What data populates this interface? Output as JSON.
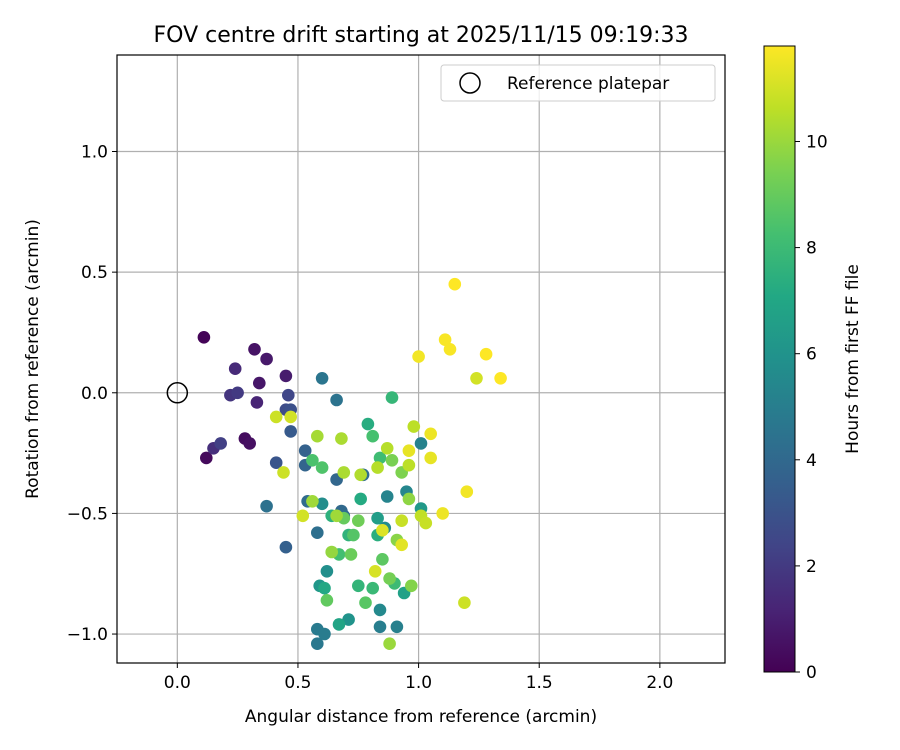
{
  "chart_data": {
    "type": "scatter",
    "title": "FOV centre drift starting at 2025/11/15 09:19:33",
    "xlabel": "Angular distance from reference (arcmin)",
    "ylabel": "Rotation from reference (arcmin)",
    "xlim": [
      -0.25,
      2.27
    ],
    "ylim": [
      -1.12,
      1.4
    ],
    "xticks": [
      0.0,
      0.5,
      1.0,
      1.5,
      2.0
    ],
    "xtick_labels": [
      "0.0",
      "0.5",
      "1.0",
      "1.5",
      "2.0"
    ],
    "yticks": [
      1.0,
      0.5,
      0.0,
      -0.5,
      -1.0
    ],
    "ytick_labels": [
      "1.0",
      "0.5",
      "0.0",
      "−0.5",
      "−1.0"
    ],
    "grid": true,
    "legend": {
      "placement": "top-right",
      "label": "Reference platepar"
    },
    "reference_point": {
      "x": 0.0,
      "y": 0.0
    },
    "colorbar": {
      "label": "Hours from first FF file",
      "range": [
        0,
        11.8
      ],
      "ticks": [
        0,
        2,
        4,
        6,
        8,
        10
      ],
      "tick_labels": [
        "0",
        "2",
        "4",
        "6",
        "8",
        "10"
      ],
      "colormap": "viridis"
    },
    "points": [
      {
        "x": 0.11,
        "y": 0.23,
        "h": 0.1
      },
      {
        "x": 0.12,
        "y": -0.27,
        "h": 0.3
      },
      {
        "x": 0.28,
        "y": -0.19,
        "h": 0.4
      },
      {
        "x": 0.3,
        "y": -0.21,
        "h": 0.5
      },
      {
        "x": 0.32,
        "y": 0.18,
        "h": 0.6
      },
      {
        "x": 0.34,
        "y": 0.04,
        "h": 0.7
      },
      {
        "x": 0.37,
        "y": 0.14,
        "h": 0.8
      },
      {
        "x": 0.45,
        "y": 0.07,
        "h": 0.9
      },
      {
        "x": 0.33,
        "y": -0.04,
        "h": 1.2
      },
      {
        "x": 0.24,
        "y": 0.1,
        "h": 1.4
      },
      {
        "x": 0.15,
        "y": -0.23,
        "h": 1.6
      },
      {
        "x": 0.22,
        "y": -0.01,
        "h": 1.8
      },
      {
        "x": 0.25,
        "y": 0.0,
        "h": 2.0
      },
      {
        "x": 0.18,
        "y": -0.21,
        "h": 2.2
      },
      {
        "x": 0.46,
        "y": -0.01,
        "h": 2.5
      },
      {
        "x": 0.45,
        "y": -0.07,
        "h": 2.7
      },
      {
        "x": 0.47,
        "y": -0.07,
        "h": 2.9
      },
      {
        "x": 0.41,
        "y": -0.29,
        "h": 3.1
      },
      {
        "x": 0.47,
        "y": -0.16,
        "h": 3.3
      },
      {
        "x": 0.45,
        "y": -0.64,
        "h": 3.6
      },
      {
        "x": 0.53,
        "y": -0.24,
        "h": 3.7
      },
      {
        "x": 0.53,
        "y": -0.3,
        "h": 3.8
      },
      {
        "x": 0.66,
        "y": -0.36,
        "h": 3.9
      },
      {
        "x": 0.68,
        "y": -0.49,
        "h": 4.0
      },
      {
        "x": 0.54,
        "y": -0.45,
        "h": 4.1
      },
      {
        "x": 0.69,
        "y": -0.51,
        "h": 4.2
      },
      {
        "x": 0.77,
        "y": -0.34,
        "h": 4.2
      },
      {
        "x": 0.58,
        "y": -0.58,
        "h": 4.3
      },
      {
        "x": 0.37,
        "y": -0.47,
        "h": 4.4
      },
      {
        "x": 0.66,
        "y": -0.03,
        "h": 4.5
      },
      {
        "x": 0.6,
        "y": 0.06,
        "h": 4.6
      },
      {
        "x": 0.58,
        "y": -1.04,
        "h": 4.7
      },
      {
        "x": 0.58,
        "y": -0.98,
        "h": 4.8
      },
      {
        "x": 0.61,
        "y": -1.0,
        "h": 4.9
      },
      {
        "x": 0.84,
        "y": -0.97,
        "h": 5.0
      },
      {
        "x": 0.91,
        "y": -0.97,
        "h": 5.1
      },
      {
        "x": 1.01,
        "y": -0.21,
        "h": 5.2
      },
      {
        "x": 0.87,
        "y": -0.43,
        "h": 5.3
      },
      {
        "x": 0.95,
        "y": -0.41,
        "h": 5.4
      },
      {
        "x": 0.84,
        "y": -0.9,
        "h": 5.5
      },
      {
        "x": 0.86,
        "y": -0.56,
        "h": 5.6
      },
      {
        "x": 0.6,
        "y": -0.46,
        "h": 5.7
      },
      {
        "x": 0.62,
        "y": -0.74,
        "h": 5.8
      },
      {
        "x": 0.71,
        "y": -0.94,
        "h": 6.0
      },
      {
        "x": 0.59,
        "y": -0.8,
        "h": 6.2
      },
      {
        "x": 1.01,
        "y": -0.48,
        "h": 6.3
      },
      {
        "x": 0.83,
        "y": -0.52,
        "h": 6.5
      },
      {
        "x": 0.94,
        "y": -0.83,
        "h": 6.7
      },
      {
        "x": 0.67,
        "y": -0.96,
        "h": 6.9
      },
      {
        "x": 0.61,
        "y": -0.81,
        "h": 7.1
      },
      {
        "x": 0.76,
        "y": -0.44,
        "h": 7.2
      },
      {
        "x": 0.79,
        "y": -0.13,
        "h": 7.3
      },
      {
        "x": 0.83,
        "y": -0.59,
        "h": 7.4
      },
      {
        "x": 0.64,
        "y": -0.51,
        "h": 7.5
      },
      {
        "x": 0.71,
        "y": -0.59,
        "h": 7.6
      },
      {
        "x": 0.75,
        "y": -0.8,
        "h": 7.7
      },
      {
        "x": 0.89,
        "y": -0.02,
        "h": 7.8
      },
      {
        "x": 0.81,
        "y": -0.81,
        "h": 7.9
      },
      {
        "x": 0.9,
        "y": -0.79,
        "h": 8.0
      },
      {
        "x": 0.84,
        "y": -0.27,
        "h": 8.1
      },
      {
        "x": 0.67,
        "y": -0.67,
        "h": 8.2
      },
      {
        "x": 0.81,
        "y": -0.18,
        "h": 8.3
      },
      {
        "x": 0.56,
        "y": -0.28,
        "h": 8.4
      },
      {
        "x": 0.6,
        "y": -0.31,
        "h": 8.5
      },
      {
        "x": 0.73,
        "y": -0.59,
        "h": 8.6
      },
      {
        "x": 0.78,
        "y": -0.87,
        "h": 8.7
      },
      {
        "x": 0.85,
        "y": -0.69,
        "h": 8.8
      },
      {
        "x": 0.62,
        "y": -0.86,
        "h": 8.9
      },
      {
        "x": 0.69,
        "y": -0.52,
        "h": 9.0
      },
      {
        "x": 0.72,
        "y": -0.67,
        "h": 9.1
      },
      {
        "x": 0.75,
        "y": -0.53,
        "h": 9.2
      },
      {
        "x": 0.88,
        "y": -0.77,
        "h": 9.3
      },
      {
        "x": 0.89,
        "y": -0.28,
        "h": 9.4
      },
      {
        "x": 0.93,
        "y": -0.33,
        "h": 9.5
      },
      {
        "x": 0.97,
        "y": -0.8,
        "h": 9.6
      },
      {
        "x": 0.91,
        "y": -0.61,
        "h": 9.7
      },
      {
        "x": 0.96,
        "y": -0.44,
        "h": 9.8
      },
      {
        "x": 0.64,
        "y": -0.66,
        "h": 9.9
      },
      {
        "x": 0.88,
        "y": -1.04,
        "h": 10.0
      },
      {
        "x": 0.66,
        "y": -0.51,
        "h": 10.1
      },
      {
        "x": 0.56,
        "y": -0.45,
        "h": 10.1
      },
      {
        "x": 0.58,
        "y": -0.18,
        "h": 10.2
      },
      {
        "x": 0.68,
        "y": -0.19,
        "h": 10.3
      },
      {
        "x": 0.69,
        "y": -0.33,
        "h": 10.3
      },
      {
        "x": 0.76,
        "y": -0.34,
        "h": 10.4
      },
      {
        "x": 0.83,
        "y": -0.31,
        "h": 10.5
      },
      {
        "x": 0.87,
        "y": -0.23,
        "h": 10.5
      },
      {
        "x": 0.96,
        "y": -0.3,
        "h": 10.6
      },
      {
        "x": 0.98,
        "y": -0.14,
        "h": 10.6
      },
      {
        "x": 1.01,
        "y": -0.51,
        "h": 10.7
      },
      {
        "x": 1.03,
        "y": -0.54,
        "h": 10.8
      },
      {
        "x": 0.93,
        "y": -0.53,
        "h": 10.8
      },
      {
        "x": 0.44,
        "y": -0.33,
        "h": 10.9
      },
      {
        "x": 0.41,
        "y": -0.1,
        "h": 10.9
      },
      {
        "x": 0.47,
        "y": -0.1,
        "h": 11.0
      },
      {
        "x": 0.52,
        "y": -0.51,
        "h": 11.0
      },
      {
        "x": 1.19,
        "y": -0.87,
        "h": 10.9
      },
      {
        "x": 1.24,
        "y": 0.06,
        "h": 11.0
      },
      {
        "x": 0.82,
        "y": -0.74,
        "h": 11.1
      },
      {
        "x": 0.85,
        "y": -0.57,
        "h": 11.2
      },
      {
        "x": 0.93,
        "y": -0.63,
        "h": 11.3
      },
      {
        "x": 0.96,
        "y": -0.24,
        "h": 11.4
      },
      {
        "x": 1.05,
        "y": -0.27,
        "h": 11.4
      },
      {
        "x": 1.05,
        "y": -0.17,
        "h": 11.5
      },
      {
        "x": 1.1,
        "y": -0.5,
        "h": 11.5
      },
      {
        "x": 1.2,
        "y": -0.41,
        "h": 11.6
      },
      {
        "x": 1.0,
        "y": 0.15,
        "h": 11.6
      },
      {
        "x": 1.11,
        "y": 0.22,
        "h": 11.7
      },
      {
        "x": 1.13,
        "y": 0.18,
        "h": 11.7
      },
      {
        "x": 1.15,
        "y": 0.45,
        "h": 11.8
      },
      {
        "x": 1.28,
        "y": 0.16,
        "h": 11.8
      },
      {
        "x": 1.34,
        "y": 0.06,
        "h": 11.8
      }
    ]
  }
}
